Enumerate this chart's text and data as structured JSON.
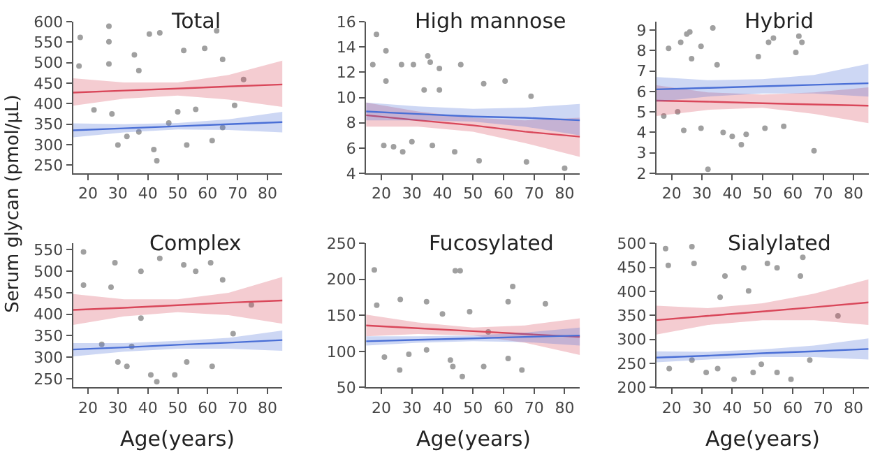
{
  "chart_data": [
    {
      "type": "line",
      "title": "Total",
      "ylabel": "Serum glycan (pmol/μL)",
      "xlim": [
        15,
        85
      ],
      "xticks": [
        20,
        30,
        40,
        50,
        60,
        70,
        80
      ],
      "ylim": [
        230,
        600
      ],
      "yticks": [
        250,
        300,
        350,
        400,
        450,
        500,
        550,
        600
      ],
      "grid": false,
      "series": [
        {
          "type": "scatter",
          "marker": "circle",
          "color": "#a0a0a0",
          "x": [
            17.4,
            27,
            27,
            40.5,
            44,
            35.5,
            52,
            59,
            63,
            65,
            17,
            27,
            37,
            22,
            28,
            33,
            37,
            42,
            43,
            53,
            61.5,
            69,
            50,
            56,
            30,
            47,
            65,
            72
          ],
          "values": [
            562,
            589,
            551,
            570,
            573,
            519,
            530,
            535,
            578,
            508,
            492,
            497,
            481,
            385,
            375,
            320,
            331,
            288,
            261,
            299,
            310,
            396,
            380,
            386,
            299,
            353,
            342,
            459
          ]
        },
        {
          "color": "#d9475a",
          "x": [
            15,
            32,
            50,
            67,
            85
          ],
          "values": [
            427,
            432,
            437,
            442,
            447
          ],
          "lower": [
            395,
            412,
            420,
            410,
            392
          ],
          "upper": [
            462,
            452,
            452,
            470,
            505
          ]
        },
        {
          "color": "#4a6fd6",
          "x": [
            15,
            32,
            50,
            67,
            85
          ],
          "values": [
            335,
            340,
            345,
            350,
            355
          ],
          "lower": [
            318,
            330,
            337,
            336,
            330
          ],
          "upper": [
            352,
            350,
            353,
            362,
            380
          ]
        }
      ]
    },
    {
      "type": "line",
      "title": "High mannose",
      "xlim": [
        15,
        85
      ],
      "xticks": [
        20,
        30,
        40,
        50,
        60,
        70,
        80
      ],
      "ylim": [
        4,
        16
      ],
      "yticks": [
        4,
        6,
        8,
        10,
        12,
        14,
        16
      ],
      "grid": false,
      "series": [
        {
          "type": "scatter",
          "marker": "circle",
          "color": "#a0a0a0",
          "x": [
            18.4,
            21.5,
            17.2,
            26.6,
            30.5,
            35.2,
            36,
            46,
            39,
            21.5,
            34,
            39,
            60.5,
            53.5,
            69,
            20.8,
            24,
            30,
            36.7,
            44,
            52,
            67.5,
            80,
            27
          ],
          "values": [
            15.0,
            13.7,
            12.6,
            12.6,
            12.6,
            13.3,
            12.8,
            12.6,
            12.3,
            11.3,
            10.6,
            10.6,
            11.3,
            11.1,
            10.1,
            6.2,
            6.1,
            6.5,
            6.2,
            5.7,
            5.0,
            4.9,
            4.4,
            5.7
          ]
        },
        {
          "color": "#d9475a",
          "x": [
            15,
            32,
            50,
            67,
            85
          ],
          "values": [
            8.6,
            8.2,
            7.8,
            7.3,
            6.9
          ],
          "lower": [
            7.7,
            7.7,
            7.3,
            6.4,
            5.3
          ],
          "upper": [
            9.6,
            8.9,
            8.4,
            8.2,
            8.4
          ]
        },
        {
          "color": "#4a6fd6",
          "x": [
            15,
            32,
            50,
            67,
            85
          ],
          "values": [
            8.9,
            8.7,
            8.5,
            8.4,
            8.2
          ],
          "lower": [
            8.2,
            8.2,
            8.1,
            7.7,
            7.0
          ],
          "upper": [
            9.6,
            9.3,
            9.1,
            9.2,
            9.5
          ]
        }
      ]
    },
    {
      "type": "line",
      "title": "Hybrid",
      "xlim": [
        15,
        85
      ],
      "xticks": [
        20,
        30,
        40,
        50,
        60,
        70,
        80
      ],
      "ylim": [
        2,
        9.4
      ],
      "yticks": [
        2,
        3,
        4,
        5,
        6,
        7,
        8,
        9
      ],
      "grid": false,
      "series": [
        {
          "type": "scatter",
          "marker": "circle",
          "color": "#a0a0a0",
          "x": [
            19,
            23,
            25,
            26,
            33.6,
            29.7,
            26.6,
            52,
            53.6,
            62,
            63,
            61,
            48.6,
            35,
            22,
            17.4,
            24,
            29.7,
            37,
            40,
            44.6,
            50.8,
            57,
            43,
            67,
            32
          ],
          "values": [
            8.1,
            8.4,
            8.8,
            8.9,
            9.1,
            8.2,
            7.6,
            8.4,
            8.6,
            8.7,
            8.4,
            7.9,
            7.7,
            7.3,
            5.0,
            4.8,
            4.1,
            4.2,
            4.0,
            3.8,
            3.9,
            4.2,
            4.3,
            3.4,
            3.1,
            2.2
          ]
        },
        {
          "color": "#d9475a",
          "x": [
            15,
            32,
            50,
            67,
            85
          ],
          "values": [
            5.55,
            5.5,
            5.42,
            5.36,
            5.3
          ],
          "lower": [
            4.8,
            5.1,
            5.2,
            4.9,
            4.45
          ],
          "upper": [
            6.3,
            5.95,
            5.85,
            5.95,
            6.2
          ]
        },
        {
          "color": "#4a6fd6",
          "x": [
            15,
            32,
            50,
            67,
            85
          ],
          "values": [
            6.1,
            6.17,
            6.25,
            6.32,
            6.4
          ],
          "lower": [
            5.5,
            5.75,
            5.9,
            5.9,
            5.75
          ],
          "upper": [
            6.7,
            6.55,
            6.6,
            6.8,
            7.35
          ]
        }
      ]
    },
    {
      "type": "line",
      "title": "Complex",
      "xlabel": "Age(years)",
      "xlim": [
        15,
        85
      ],
      "xticks": [
        20,
        30,
        40,
        50,
        60,
        70,
        80
      ],
      "ylim": [
        230,
        565
      ],
      "yticks": [
        250,
        300,
        350,
        400,
        450,
        500,
        550
      ],
      "grid": false,
      "series": [
        {
          "type": "scatter",
          "marker": "circle",
          "color": "#a0a0a0",
          "x": [
            18.5,
            29,
            37.7,
            44,
            52,
            56,
            61,
            65,
            18.5,
            27.7,
            37.7,
            34.6,
            30,
            33,
            41,
            43,
            53,
            61.5,
            49,
            68.5,
            74.6,
            24.6
          ],
          "values": [
            545,
            520,
            500,
            530,
            515,
            500,
            520,
            480,
            468,
            463,
            391,
            325,
            289,
            279,
            259,
            243,
            289,
            279,
            259,
            355,
            422,
            330
          ]
        },
        {
          "color": "#d9475a",
          "x": [
            15,
            32,
            50,
            67,
            85
          ],
          "values": [
            410,
            415,
            421,
            427,
            432
          ],
          "lower": [
            375,
            395,
            405,
            398,
            378
          ],
          "upper": [
            447,
            435,
            435,
            450,
            487
          ]
        },
        {
          "color": "#4a6fd6",
          "x": [
            15,
            32,
            50,
            67,
            85
          ],
          "values": [
            318,
            323,
            329,
            334,
            340
          ],
          "lower": [
            302,
            313,
            320,
            320,
            315
          ],
          "upper": [
            333,
            333,
            338,
            345,
            362
          ]
        }
      ]
    },
    {
      "type": "line",
      "title": "Fucosylated",
      "xlabel": "Age(years)",
      "xlim": [
        15,
        85
      ],
      "xticks": [
        20,
        30,
        40,
        50,
        60,
        70,
        80
      ],
      "ylim": [
        50,
        250
      ],
      "yticks": [
        50,
        100,
        150,
        200,
        250
      ],
      "grid": false,
      "series": [
        {
          "type": "scatter",
          "marker": "circle",
          "color": "#a0a0a0",
          "x": [
            17.7,
            18.5,
            26.2,
            34.8,
            44.2,
            45.8,
            48.9,
            63,
            61.5,
            73.7,
            21,
            26,
            29,
            34.8,
            42.6,
            43.4,
            46.5,
            53.5,
            61.5,
            66,
            40,
            55
          ],
          "values": [
            213,
            164,
            172,
            169,
            212,
            212,
            155,
            190,
            169,
            166,
            92,
            74,
            96,
            102,
            88,
            79,
            65,
            79,
            90,
            74,
            152,
            127
          ]
        },
        {
          "color": "#d9475a",
          "x": [
            15,
            32,
            50,
            67,
            85
          ],
          "values": [
            136,
            132,
            128,
            124,
            120
          ],
          "lower": [
            121,
            124,
            122,
            112,
            95
          ],
          "upper": [
            151,
            140,
            133,
            136,
            146
          ]
        },
        {
          "color": "#4a6fd6",
          "x": [
            15,
            32,
            50,
            67,
            85
          ],
          "values": [
            114,
            116,
            118,
            120,
            122
          ],
          "lower": [
            108,
            112,
            114,
            113,
            108
          ],
          "upper": [
            121,
            121,
            122,
            126,
            133
          ]
        }
      ]
    },
    {
      "type": "line",
      "title": "Sialylated",
      "xlabel": "Age(years)",
      "xlim": [
        15,
        85
      ],
      "xticks": [
        20,
        30,
        40,
        50,
        60,
        70,
        80
      ],
      "ylim": [
        200,
        500
      ],
      "yticks": [
        200,
        250,
        300,
        350,
        400,
        450,
        500
      ],
      "grid": false,
      "series": [
        {
          "type": "scatter",
          "marker": "circle",
          "color": "#a0a0a0",
          "x": [
            18,
            26.7,
            18.9,
            27.4,
            37.6,
            43.8,
            51.6,
            54.8,
            62.5,
            63.3,
            45.4,
            36,
            74.9,
            19.2,
            26.7,
            31.4,
            35.2,
            40.6,
            46.9,
            54.8,
            59.4,
            65.6,
            49.6
          ],
          "values": [
            489,
            493,
            454,
            458,
            432,
            449,
            458,
            449,
            432,
            471,
            401,
            388,
            349,
            239,
            257,
            231,
            239,
            217,
            231,
            231,
            217,
            257,
            248
          ]
        },
        {
          "color": "#d9475a",
          "x": [
            15,
            32,
            50,
            67,
            85
          ],
          "values": [
            340,
            349,
            358,
            367,
            377
          ],
          "lower": [
            310,
            330,
            340,
            340,
            330
          ],
          "upper": [
            370,
            365,
            375,
            395,
            425
          ]
        },
        {
          "color": "#4a6fd6",
          "x": [
            15,
            32,
            50,
            67,
            85
          ],
          "values": [
            262,
            266,
            271,
            275,
            280
          ],
          "lower": [
            252,
            258,
            263,
            263,
            258
          ],
          "upper": [
            275,
            274,
            279,
            287,
            302
          ]
        }
      ]
    }
  ]
}
